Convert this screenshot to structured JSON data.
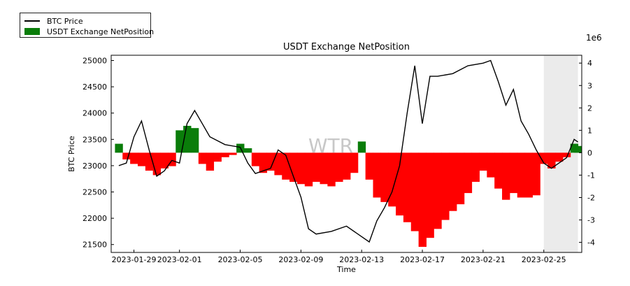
{
  "chart_data": {
    "type": "line",
    "title": "USDT Exchange NetPosition",
    "xlabel": "Time",
    "ylabel": "BTC Price",
    "y2_offset_label": "1e6",
    "watermark": "WTR",
    "x_range": [
      "2023-01-27T12:00",
      "2023-02-27T12:00"
    ],
    "x_ticks": [
      "2023-01-29",
      "2023-02-01",
      "2023-02-05",
      "2023-02-09",
      "2023-02-13",
      "2023-02-17",
      "2023-02-21",
      "2023-02-25"
    ],
    "ylim": [
      21350,
      25100
    ],
    "y_ticks": [
      21500,
      22000,
      22500,
      23000,
      23500,
      24000,
      24500,
      25000
    ],
    "y2lim": [
      -4.45,
      4.35
    ],
    "y2_ticks": [
      -4,
      -3,
      -2,
      -1,
      0,
      1,
      2,
      3,
      4
    ],
    "grid": false,
    "legend_position": "upper-left outside",
    "series": [
      {
        "name": "BTC Price",
        "type": "line",
        "axis": "left",
        "color": "#000000",
        "x": [
          "2023-01-28",
          "2023-01-28T12:00",
          "2023-01-29",
          "2023-01-29T12:00",
          "2023-01-30",
          "2023-01-30T12:00",
          "2023-01-31",
          "2023-01-31T12:00",
          "2023-02-01",
          "2023-02-01T12:00",
          "2023-02-02",
          "2023-02-02T12:00",
          "2023-02-03",
          "2023-02-04",
          "2023-02-05",
          "2023-02-05T12:00",
          "2023-02-06",
          "2023-02-07",
          "2023-02-07T12:00",
          "2023-02-08",
          "2023-02-08T12:00",
          "2023-02-09",
          "2023-02-09T12:00",
          "2023-02-10",
          "2023-02-11",
          "2023-02-12",
          "2023-02-13",
          "2023-02-13T12:00",
          "2023-02-14",
          "2023-02-14T12:00",
          "2023-02-15",
          "2023-02-15T12:00",
          "2023-02-16",
          "2023-02-16T12:00",
          "2023-02-17",
          "2023-02-17T12:00",
          "2023-02-18",
          "2023-02-19",
          "2023-02-20",
          "2023-02-21",
          "2023-02-21T12:00",
          "2023-02-22",
          "2023-02-22T12:00",
          "2023-02-23",
          "2023-02-23T12:00",
          "2023-02-24",
          "2023-02-24T12:00",
          "2023-02-25",
          "2023-02-25T12:00",
          "2023-02-26",
          "2023-02-26T12:00",
          "2023-02-27",
          "2023-02-27T06:00"
        ],
        "values": [
          23000,
          23050,
          23550,
          23850,
          23300,
          22800,
          22900,
          23100,
          23050,
          23800,
          24050,
          23800,
          23550,
          23400,
          23350,
          23050,
          22850,
          22950,
          23300,
          23200,
          22800,
          22400,
          21800,
          21700,
          21750,
          21850,
          21650,
          21550,
          21950,
          22200,
          22500,
          23000,
          24000,
          24900,
          23800,
          24700,
          24700,
          24750,
          24900,
          24950,
          25000,
          24600,
          24150,
          24450,
          23850,
          23600,
          23300,
          23050,
          22950,
          23050,
          23150,
          23500,
          23450
        ]
      },
      {
        "name": "USDT Exchange NetPosition",
        "type": "area",
        "axis": "right",
        "unit_multiplier": 1000000,
        "positive_color": "#0a7d0a",
        "negative_color": "#ff0000",
        "x": [
          "2023-01-28",
          "2023-01-28T12:00",
          "2023-01-29",
          "2023-01-29T12:00",
          "2023-01-30",
          "2023-01-30T12:00",
          "2023-01-31",
          "2023-01-31T12:00",
          "2023-02-01",
          "2023-02-01T12:00",
          "2023-02-02",
          "2023-02-02T12:00",
          "2023-02-03",
          "2023-02-03T12:00",
          "2023-02-04",
          "2023-02-04T12:00",
          "2023-02-05",
          "2023-02-05T12:00",
          "2023-02-06",
          "2023-02-06T12:00",
          "2023-02-07",
          "2023-02-07T12:00",
          "2023-02-08",
          "2023-02-08T12:00",
          "2023-02-09",
          "2023-02-09T12:00",
          "2023-02-10",
          "2023-02-10T12:00",
          "2023-02-11",
          "2023-02-11T12:00",
          "2023-02-12",
          "2023-02-12T12:00",
          "2023-02-13",
          "2023-02-13T12:00",
          "2023-02-14",
          "2023-02-14T12:00",
          "2023-02-15",
          "2023-02-15T12:00",
          "2023-02-16",
          "2023-02-16T12:00",
          "2023-02-17",
          "2023-02-17T12:00",
          "2023-02-18",
          "2023-02-18T12:00",
          "2023-02-19",
          "2023-02-19T12:00",
          "2023-02-20",
          "2023-02-20T12:00",
          "2023-02-21",
          "2023-02-21T12:00",
          "2023-02-22",
          "2023-02-22T12:00",
          "2023-02-23",
          "2023-02-23T12:00",
          "2023-02-24",
          "2023-02-24T12:00",
          "2023-02-25",
          "2023-02-25T12:00",
          "2023-02-26",
          "2023-02-26T12:00",
          "2023-02-27",
          "2023-02-27T06:00"
        ],
        "values": [
          0.4,
          -0.3,
          -0.5,
          -0.6,
          -0.8,
          -1.0,
          -0.7,
          -0.6,
          1.0,
          1.2,
          1.1,
          -0.5,
          -0.8,
          -0.4,
          -0.2,
          -0.1,
          0.4,
          0.2,
          -0.6,
          -0.9,
          -0.8,
          -1.0,
          -1.2,
          -1.3,
          -1.4,
          -1.5,
          -1.3,
          -1.4,
          -1.5,
          -1.3,
          -1.2,
          -0.9,
          0.5,
          -1.2,
          -2.0,
          -2.2,
          -2.4,
          -2.8,
          -3.1,
          -3.5,
          -4.2,
          -3.8,
          -3.4,
          -3.0,
          -2.6,
          -2.3,
          -1.8,
          -1.3,
          -0.8,
          -1.1,
          -1.6,
          -2.1,
          -1.8,
          -2.0,
          -2.0,
          -1.9,
          -0.5,
          -0.7,
          -0.4,
          -0.2,
          0.4,
          0.3
        ]
      }
    ],
    "shaded_x_range": [
      "2023-02-25",
      "2023-02-27T06:00"
    ]
  },
  "legend": {
    "entries": [
      {
        "label": "BTC Price",
        "kind": "line",
        "color": "#000000"
      },
      {
        "label": "USDT Exchange NetPosition",
        "kind": "patch",
        "color": "#0a7d0a"
      }
    ]
  }
}
